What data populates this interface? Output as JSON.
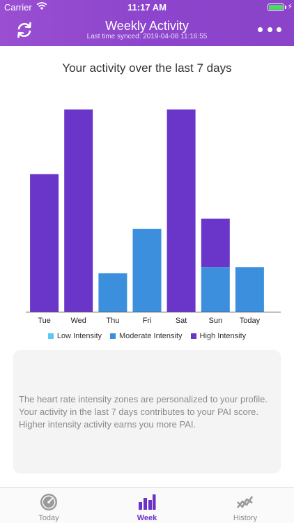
{
  "status_bar": {
    "carrier": "Carrier",
    "time": "11:17 AM"
  },
  "header": {
    "title": "Weekly Activity",
    "subtitle": "Last time synced: 2019-04-08 11:16:55",
    "sync_icon": "sync-icon",
    "more_icon": "more-icon"
  },
  "chart_title": "Your activity over the last 7 days",
  "colors": {
    "low": "#5ac8f5",
    "moderate": "#3b8fdd",
    "high": "#6a35c9",
    "accent": "#8c45cc"
  },
  "chart_data": {
    "type": "bar",
    "stacked": true,
    "categories": [
      "Tue",
      "Wed",
      "Thu",
      "Fri",
      "Sat",
      "Sun",
      "Today"
    ],
    "series": [
      {
        "name": "Low Intensity",
        "values": [
          0,
          0,
          0,
          0,
          0,
          0,
          0
        ]
      },
      {
        "name": "Moderate Intensity",
        "values": [
          0,
          0,
          19,
          41,
          0,
          22,
          22
        ]
      },
      {
        "name": "High Intensity",
        "values": [
          68,
          100,
          0,
          0,
          100,
          24,
          0
        ]
      }
    ],
    "ylim": [
      0,
      100
    ],
    "grid": false,
    "legend_position": "bottom"
  },
  "info_text": "The heart rate intensity zones are personalized to your profile. Your activity in the last 7 days contributes to your PAI score. Higher intensity activity earns you more PAI.",
  "tabs": [
    {
      "label": "Today",
      "icon": "speedometer-icon",
      "active": false
    },
    {
      "label": "Week",
      "icon": "bar-chart-icon",
      "active": true
    },
    {
      "label": "History",
      "icon": "trend-line-icon",
      "active": false
    }
  ]
}
